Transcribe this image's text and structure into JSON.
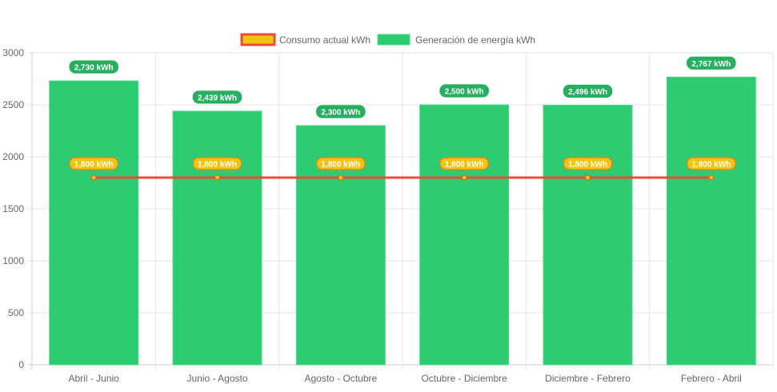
{
  "chart_data": {
    "type": "bar",
    "categories": [
      "Abril - Junio",
      "Junio - Agosto",
      "Agosto - Octubre",
      "Octubre - Diciembre",
      "Diciembre - Febrero",
      "Febrero - Abril"
    ],
    "series": [
      {
        "name": "Consumo actual kWh",
        "type": "line",
        "values": [
          1800,
          1800,
          1800,
          1800,
          1800,
          1800
        ],
        "labels": [
          "1,800 kWh",
          "1,800 kWh",
          "1,800 kWh",
          "1,800 kWh",
          "1,800 kWh",
          "1,800 kWh"
        ],
        "color": "#e74c3c",
        "fill": "#f1c40f"
      },
      {
        "name": "Generación de energía kWh",
        "type": "bar",
        "values": [
          2730,
          2439,
          2300,
          2500,
          2496,
          2767
        ],
        "labels": [
          "2,730 kWh",
          "2,439 kWh",
          "2,300 kWh",
          "2,500 kWh",
          "2,496 kWh",
          "2,767 kWh"
        ],
        "color": "#2ecc71"
      }
    ],
    "ylim": [
      0,
      3000
    ],
    "yticks": [
      "0",
      "500",
      "1000",
      "1500",
      "2000",
      "2500",
      "3000"
    ],
    "grid": true,
    "legend": "top"
  }
}
